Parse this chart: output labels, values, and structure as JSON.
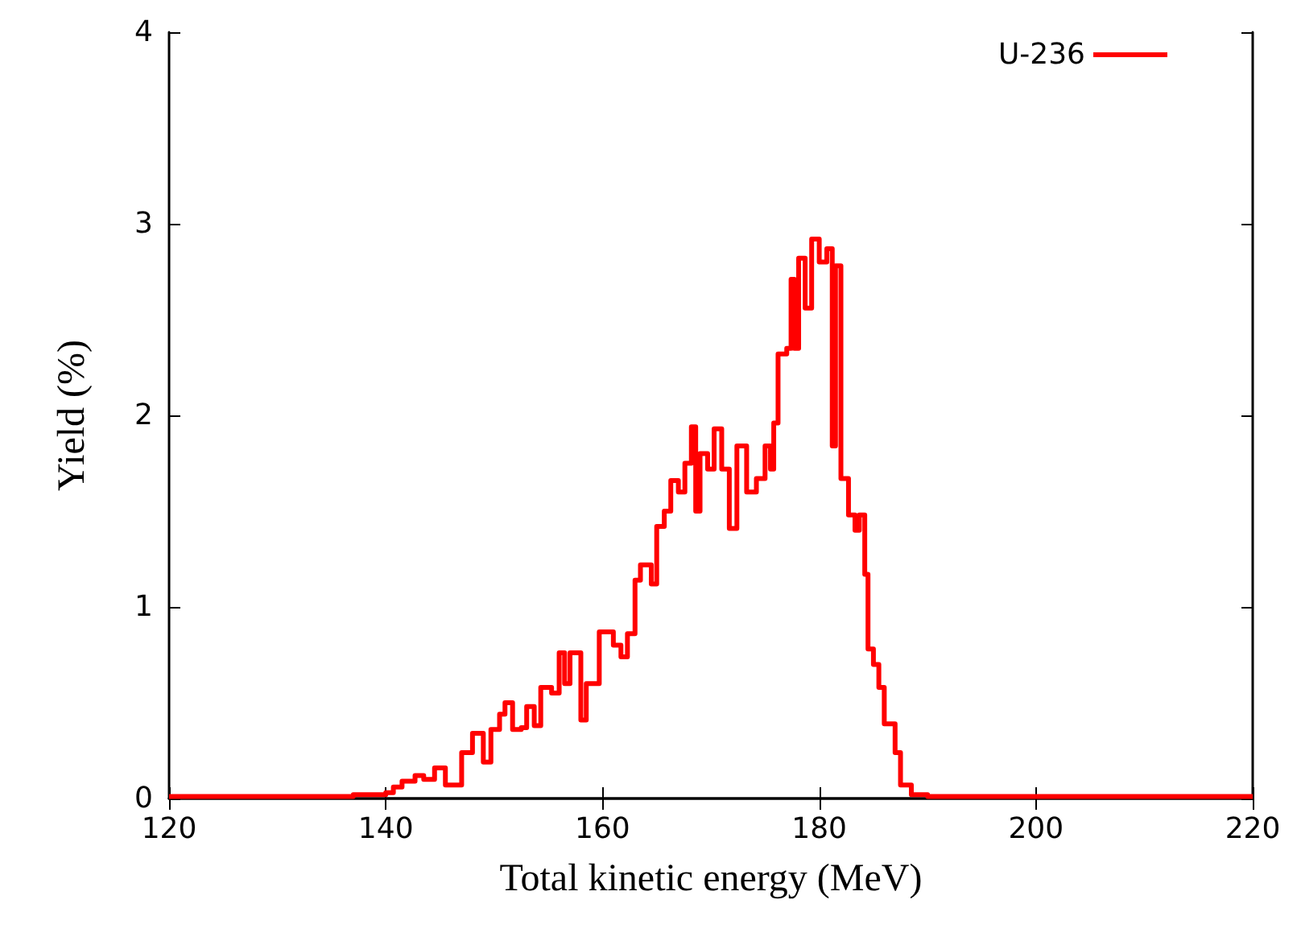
{
  "chart_data": {
    "type": "step",
    "xlabel": "Total kinetic energy (MeV)",
    "ylabel": "Yield (%)",
    "xlim": [
      120,
      220
    ],
    "xticks": [
      120,
      140,
      160,
      180,
      200,
      220
    ],
    "ylim": [
      0,
      4
    ],
    "yticks": [
      0,
      1,
      2,
      3,
      4
    ],
    "grid": false,
    "legend": "top right",
    "marker": "none",
    "line_style": "solid",
    "series": [
      {
        "name": "U-236",
        "color": "#ff0000",
        "x": [
          120,
          137,
          140,
          140.7,
          141.5,
          142.7,
          143.5,
          144.5,
          145.5,
          147,
          148,
          149,
          149.7,
          150.5,
          151,
          151.7,
          152.5,
          153,
          153.7,
          154.3,
          155.3,
          156,
          156.5,
          157,
          158,
          158.5,
          159.7,
          161,
          161.7,
          162.3,
          163,
          163.5,
          164.5,
          165,
          165.7,
          166.3,
          167,
          167.6,
          168.2,
          168.6,
          169,
          169.7,
          170.3,
          171,
          171.7,
          172.4,
          173.3,
          174.2,
          175,
          175.5,
          175.8,
          176.2,
          177,
          177.4,
          177.7,
          178.1,
          178.7,
          179.3,
          180,
          180.7,
          181.2,
          181.5,
          182,
          182.7,
          183.3,
          183.7,
          184.2,
          184.5,
          185,
          185.5,
          186,
          187,
          187.5,
          188.5,
          190,
          220
        ],
        "values": [
          0.01,
          0.02,
          0.03,
          0.06,
          0.09,
          0.12,
          0.1,
          0.16,
          0.07,
          0.24,
          0.34,
          0.19,
          0.36,
          0.44,
          0.5,
          0.36,
          0.37,
          0.48,
          0.38,
          0.58,
          0.55,
          0.76,
          0.6,
          0.76,
          0.41,
          0.6,
          0.87,
          0.8,
          0.74,
          0.86,
          1.14,
          1.22,
          1.12,
          1.42,
          1.5,
          1.66,
          1.6,
          1.75,
          1.94,
          1.5,
          1.8,
          1.72,
          1.93,
          1.72,
          1.41,
          1.84,
          1.6,
          1.67,
          1.84,
          1.72,
          1.96,
          2.32,
          2.35,
          2.71,
          2.35,
          2.82,
          2.56,
          2.92,
          2.8,
          2.87,
          1.84,
          2.78,
          1.67,
          1.48,
          1.4,
          1.48,
          1.17,
          0.78,
          0.7,
          0.58,
          0.39,
          0.24,
          0.07,
          0.02,
          0.01,
          0.01
        ]
      }
    ]
  }
}
